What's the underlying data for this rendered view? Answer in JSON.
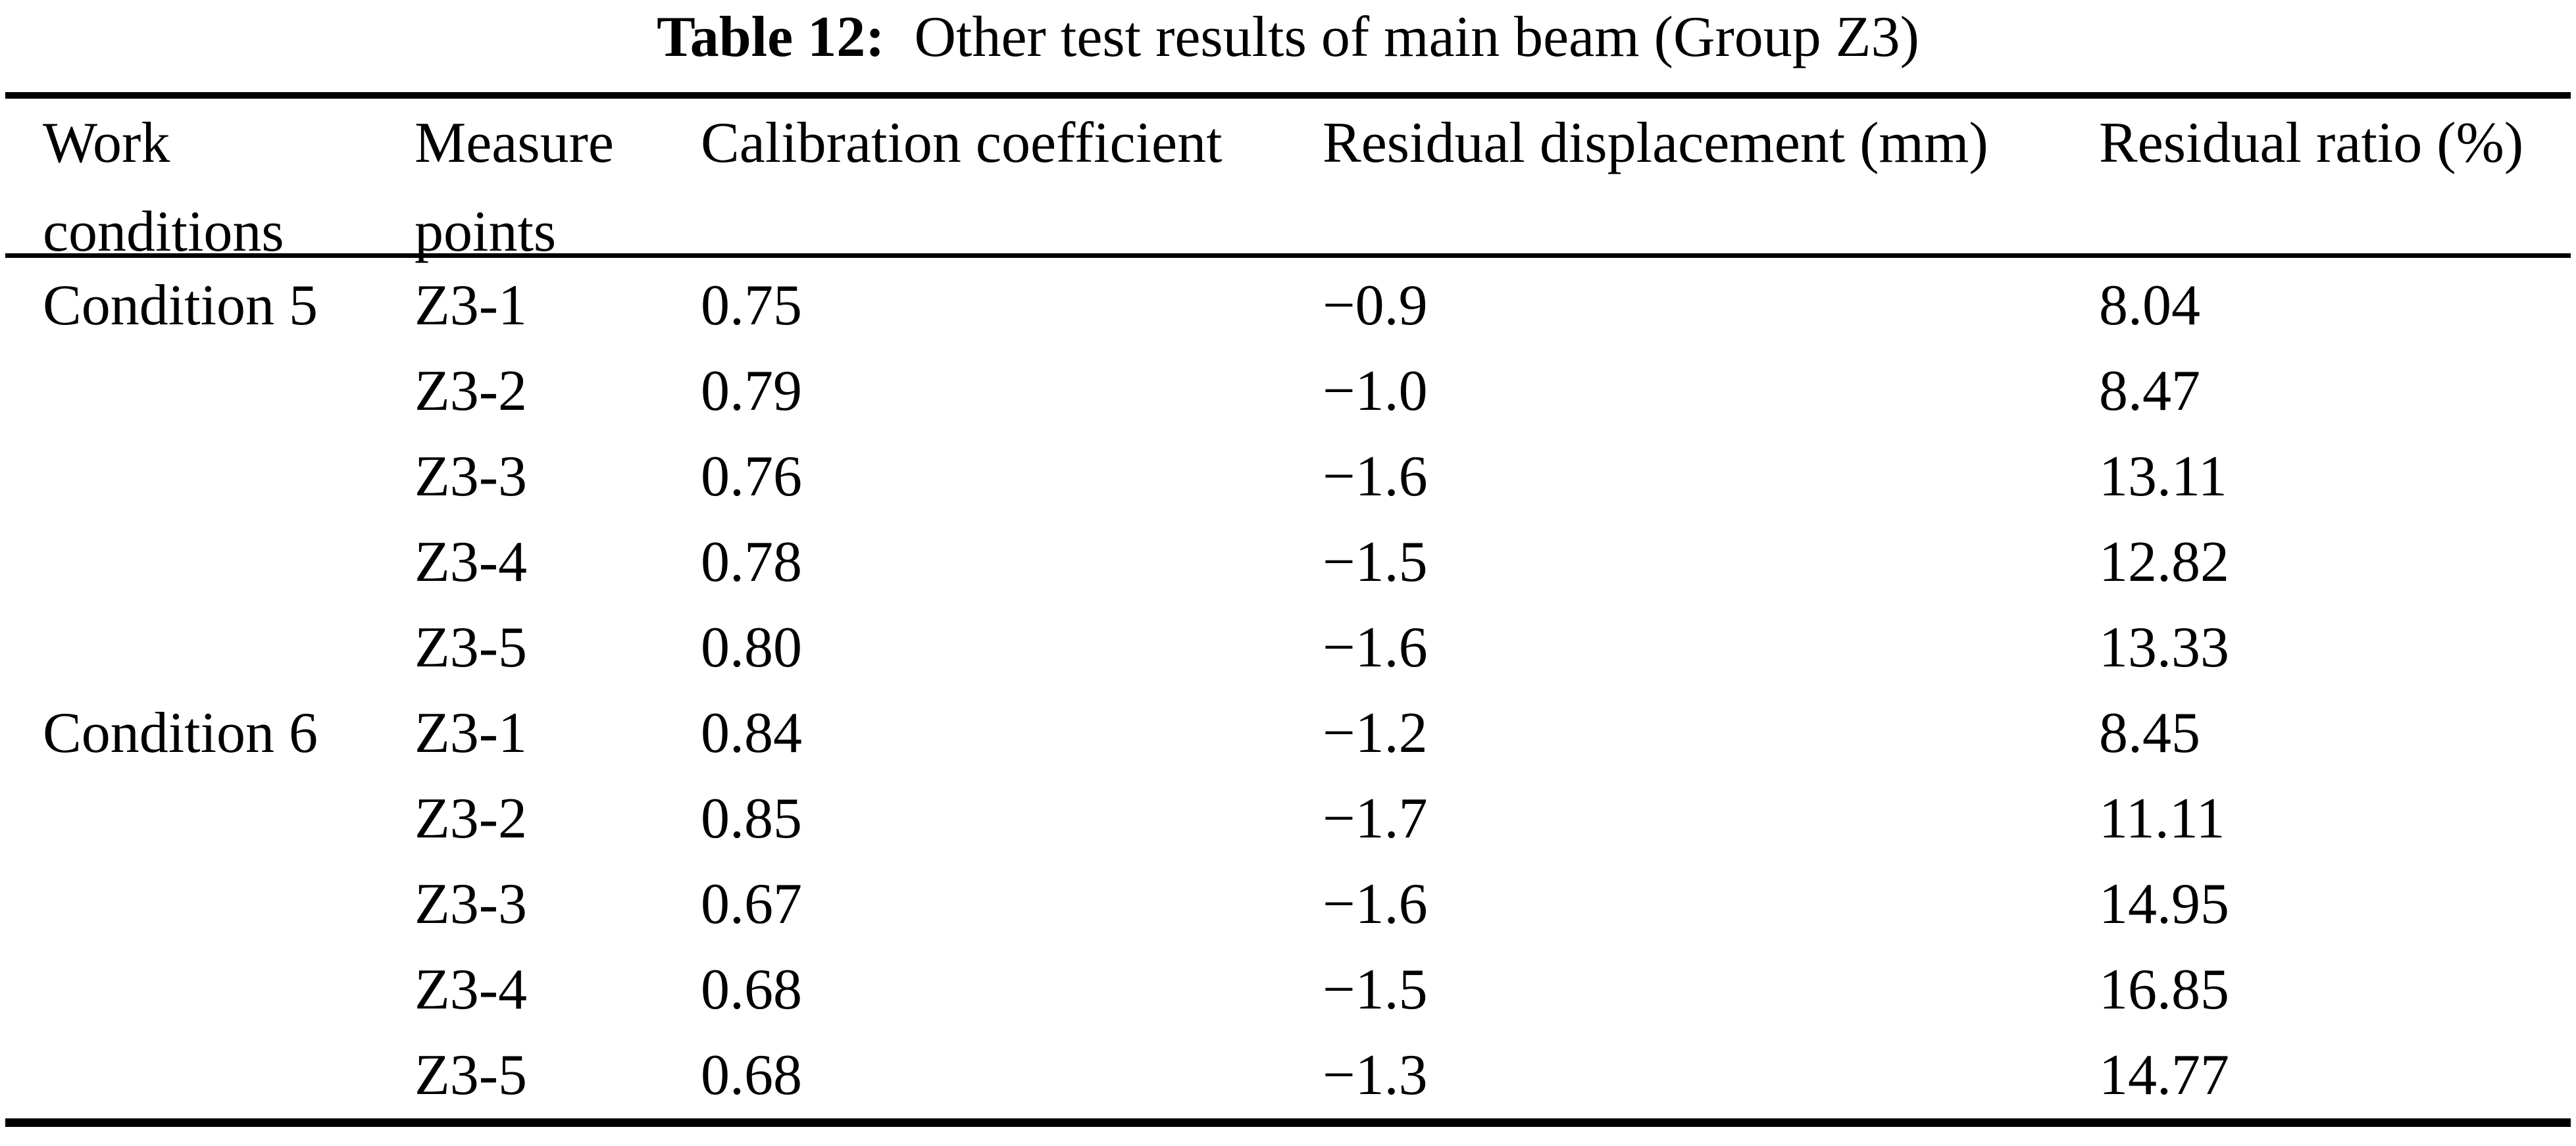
{
  "title": {
    "label": "Table 12:",
    "text": "Other test results of main beam (Group Z3)"
  },
  "table": {
    "headers": [
      {
        "line1": "Work",
        "line2": "conditions"
      },
      {
        "line1": "Measure",
        "line2": "points"
      },
      {
        "line1": "Calibration coefficient",
        "line2": ""
      },
      {
        "line1": "Residual displacement (mm)",
        "line2": ""
      },
      {
        "line1": "Residual ratio (%)",
        "line2": ""
      }
    ],
    "rows": [
      {
        "condition": "Condition 5",
        "point": "Z3-1",
        "coef": "0.75",
        "disp": "−0.9",
        "ratio": "8.04"
      },
      {
        "condition": "",
        "point": "Z3-2",
        "coef": "0.79",
        "disp": "−1.0",
        "ratio": "8.47"
      },
      {
        "condition": "",
        "point": "Z3-3",
        "coef": "0.76",
        "disp": "−1.6",
        "ratio": "13.11"
      },
      {
        "condition": "",
        "point": "Z3-4",
        "coef": "0.78",
        "disp": "−1.5",
        "ratio": "12.82"
      },
      {
        "condition": "",
        "point": "Z3-5",
        "coef": "0.80",
        "disp": "−1.6",
        "ratio": "13.33"
      },
      {
        "condition": "Condition 6",
        "point": "Z3-1",
        "coef": "0.84",
        "disp": "−1.2",
        "ratio": "8.45"
      },
      {
        "condition": "",
        "point": "Z3-2",
        "coef": "0.85",
        "disp": "−1.7",
        "ratio": "11.11"
      },
      {
        "condition": "",
        "point": "Z3-3",
        "coef": "0.67",
        "disp": "−1.6",
        "ratio": "14.95"
      },
      {
        "condition": "",
        "point": "Z3-4",
        "coef": "0.68",
        "disp": "−1.5",
        "ratio": "16.85"
      },
      {
        "condition": "",
        "point": "Z3-5",
        "coef": "0.68",
        "disp": "−1.3",
        "ratio": "14.77"
      }
    ]
  }
}
